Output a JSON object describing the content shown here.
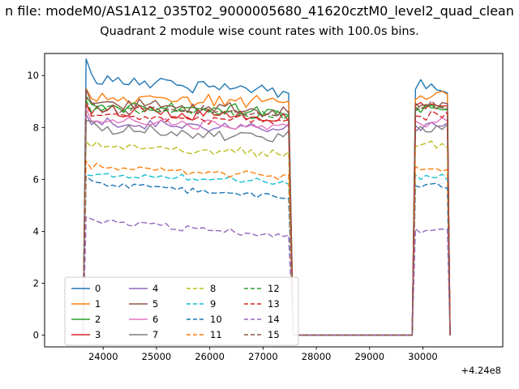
{
  "figure": {
    "suptitle": "n file: modeM0/AS1A12_035T02_9000005680_41620cztM0_level2_quad_clean",
    "background": "#ffffff"
  },
  "chart_data": {
    "type": "line",
    "title": "Quadrant 2 module wise count rates with 100.0s bins.",
    "xlabel": "",
    "ylabel": "",
    "x_offset_label": "+4.24e8",
    "x_ticks": [
      24000,
      25000,
      26000,
      27000,
      28000,
      29000,
      30000
    ],
    "y_ticks": [
      0,
      2,
      4,
      6,
      8,
      10
    ],
    "xlim": [
      22900,
      31500
    ],
    "ylim": [
      -0.45,
      10.85
    ],
    "bin_seconds": 100,
    "gti_intervals": [
      [
        23620,
        27520
      ],
      [
        29800,
        30460
      ]
    ],
    "legend": {
      "location": "lower left",
      "columns": 4
    },
    "series": [
      {
        "name": "0",
        "color": "#1f77b4",
        "dash": false,
        "level_start": 9.9,
        "level_end": 9.4,
        "level_gti2": 9.6,
        "noise": 0.32,
        "spike": 0.55
      },
      {
        "name": "1",
        "color": "#ff7f0e",
        "dash": false,
        "level_start": 9.2,
        "level_end": 9.0,
        "level_gti2": 9.2,
        "noise": 0.3,
        "spike": 0.4
      },
      {
        "name": "2",
        "color": "#2ca02c",
        "dash": false,
        "level_start": 8.9,
        "level_end": 8.6,
        "level_gti2": 8.8,
        "noise": 0.28,
        "spike": 0.4
      },
      {
        "name": "3",
        "color": "#d62728",
        "dash": false,
        "level_start": 8.7,
        "level_end": 8.4,
        "level_gti2": 8.9,
        "noise": 0.28,
        "spike": 0.35
      },
      {
        "name": "4",
        "color": "#9467bd",
        "dash": false,
        "level_start": 8.2,
        "level_end": 7.9,
        "level_gti2": 8.1,
        "noise": 0.26,
        "spike": 0.3
      },
      {
        "name": "5",
        "color": "#8c564b",
        "dash": false,
        "level_start": 9.0,
        "level_end": 8.6,
        "level_gti2": 8.9,
        "noise": 0.3,
        "spike": 0.5
      },
      {
        "name": "6",
        "color": "#e377c2",
        "dash": false,
        "level_start": 8.3,
        "level_end": 8.0,
        "level_gti2": 8.2,
        "noise": 0.26,
        "spike": 0.3
      },
      {
        "name": "7",
        "color": "#7f7f7f",
        "dash": false,
        "level_start": 8.0,
        "level_end": 7.6,
        "level_gti2": 7.9,
        "noise": 0.3,
        "spike": 0.3
      },
      {
        "name": "8",
        "color": "#bcbd22",
        "dash": true,
        "level_start": 7.3,
        "level_end": 7.0,
        "level_gti2": 7.3,
        "noise": 0.2,
        "spike": 0.15
      },
      {
        "name": "9",
        "color": "#17becf",
        "dash": true,
        "level_start": 6.2,
        "level_end": 5.9,
        "level_gti2": 6.1,
        "noise": 0.16,
        "spike": 0.1
      },
      {
        "name": "10",
        "color": "#1f77b4",
        "dash": true,
        "level_start": 5.9,
        "level_end": 5.3,
        "level_gti2": 5.8,
        "noise": 0.16,
        "spike": 0.1
      },
      {
        "name": "11",
        "color": "#ff7f0e",
        "dash": true,
        "level_start": 6.5,
        "level_end": 6.1,
        "level_gti2": 6.4,
        "noise": 0.16,
        "spike": 0.1
      },
      {
        "name": "12",
        "color": "#2ca02c",
        "dash": true,
        "level_start": 8.8,
        "level_end": 8.4,
        "level_gti2": 8.7,
        "noise": 0.26,
        "spike": 0.3
      },
      {
        "name": "13",
        "color": "#d62728",
        "dash": true,
        "level_start": 8.5,
        "level_end": 8.2,
        "level_gti2": 8.5,
        "noise": 0.26,
        "spike": 0.3
      },
      {
        "name": "14",
        "color": "#9467bd",
        "dash": true,
        "level_start": 4.4,
        "level_end": 3.8,
        "level_gti2": 4.1,
        "noise": 0.18,
        "spike": 0.1
      },
      {
        "name": "15",
        "color": "#8c564b",
        "dash": true,
        "level_start": 8.8,
        "level_end": 8.5,
        "level_gti2": 8.8,
        "noise": 0.26,
        "spike": 0.3
      }
    ]
  }
}
